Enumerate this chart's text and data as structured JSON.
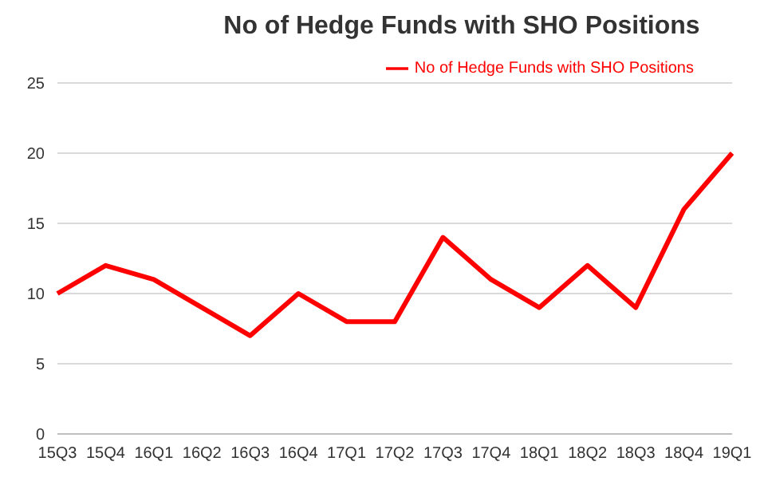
{
  "chart_data": {
    "type": "line",
    "title": "No of Hedge Funds with SHO Positions",
    "categories": [
      "15Q3",
      "15Q4",
      "16Q1",
      "16Q2",
      "16Q3",
      "16Q4",
      "17Q1",
      "17Q2",
      "17Q3",
      "17Q4",
      "18Q1",
      "18Q2",
      "18Q3",
      "18Q4",
      "19Q1"
    ],
    "series": [
      {
        "name": "No of Hedge Funds with SHO Positions",
        "color": "#ff0000",
        "values": [
          10,
          12,
          11,
          9,
          7,
          10,
          8,
          8,
          14,
          11,
          9,
          12,
          9,
          16,
          20
        ]
      }
    ],
    "ylim": [
      0,
      25
    ],
    "yticks": [
      0,
      5,
      10,
      15,
      20,
      25
    ],
    "grid": "y",
    "legend": "top right",
    "marker": "none",
    "line_style": "solid"
  }
}
